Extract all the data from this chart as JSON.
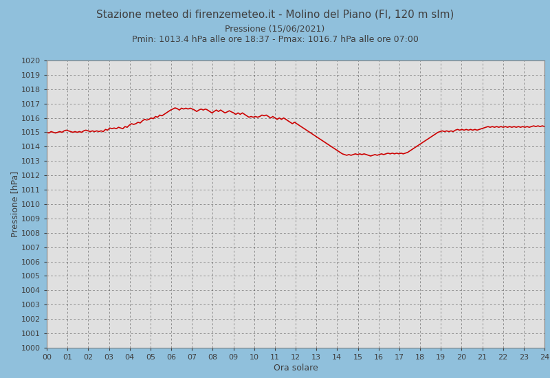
{
  "title": "Stazione meteo di firenzemeteo.it - Molino del Piano (FI, 120 m slm)",
  "subtitle1": "Pressione (15/06/2021)",
  "subtitle2": "Pmin: 1013.4 hPa alle ore 18:37 - Pmax: 1016.7 hPa alle ore 07:00",
  "ylabel": "Pressione [hPa]",
  "xlabel": "Ora solare",
  "ylim": [
    1000,
    1020
  ],
  "xlim": [
    0,
    24
  ],
  "xticks": [
    0,
    1,
    2,
    3,
    4,
    5,
    6,
    7,
    8,
    9,
    10,
    11,
    12,
    13,
    14,
    15,
    16,
    17,
    18,
    19,
    20,
    21,
    22,
    23,
    24
  ],
  "xtick_labels": [
    "00",
    "01",
    "02",
    "03",
    "04",
    "05",
    "06",
    "07",
    "08",
    "09",
    "10",
    "11",
    "12",
    "13",
    "14",
    "15",
    "16",
    "17",
    "18",
    "19",
    "20",
    "21",
    "22",
    "23",
    "24"
  ],
  "yticks": [
    1000,
    1001,
    1002,
    1003,
    1004,
    1005,
    1006,
    1007,
    1008,
    1009,
    1010,
    1011,
    1012,
    1013,
    1014,
    1015,
    1016,
    1017,
    1018,
    1019,
    1020
  ],
  "bg_color_outer": "#90c0dc",
  "bg_color_inner": "#e0e0e0",
  "title_color": "#404040",
  "tick_color": "#404040",
  "grid_color": "#000000",
  "line_color": "#cc0000",
  "line_width": 1.2,
  "pressure_data": [
    1015.0,
    1014.95,
    1015.05,
    1015.0,
    1014.95,
    1015.0,
    1015.05,
    1015.0,
    1015.1,
    1015.15,
    1015.1,
    1015.05,
    1015.0,
    1015.05,
    1015.0,
    1015.05,
    1015.0,
    1015.1,
    1015.15,
    1015.1,
    1015.05,
    1015.1,
    1015.05,
    1015.1,
    1015.05,
    1015.1,
    1015.05,
    1015.2,
    1015.15,
    1015.3,
    1015.25,
    1015.3,
    1015.25,
    1015.35,
    1015.3,
    1015.25,
    1015.4,
    1015.35,
    1015.5,
    1015.6,
    1015.55,
    1015.6,
    1015.7,
    1015.65,
    1015.8,
    1015.9,
    1015.85,
    1015.9,
    1016.0,
    1015.95,
    1016.1,
    1016.05,
    1016.2,
    1016.15,
    1016.25,
    1016.35,
    1016.45,
    1016.55,
    1016.62,
    1016.7,
    1016.65,
    1016.55,
    1016.68,
    1016.62,
    1016.68,
    1016.62,
    1016.68,
    1016.62,
    1016.55,
    1016.45,
    1016.55,
    1016.62,
    1016.55,
    1016.62,
    1016.55,
    1016.45,
    1016.35,
    1016.45,
    1016.55,
    1016.45,
    1016.55,
    1016.45,
    1016.35,
    1016.42,
    1016.5,
    1016.42,
    1016.35,
    1016.25,
    1016.35,
    1016.25,
    1016.35,
    1016.25,
    1016.15,
    1016.05,
    1016.1,
    1016.05,
    1016.1,
    1016.05,
    1016.1,
    1016.2,
    1016.15,
    1016.2,
    1016.1,
    1016.0,
    1016.1,
    1016.0,
    1015.9,
    1016.0,
    1015.9,
    1016.0,
    1015.9,
    1015.8,
    1015.7,
    1015.6,
    1015.7,
    1015.6,
    1015.5,
    1015.4,
    1015.3,
    1015.2,
    1015.1,
    1015.0,
    1014.9,
    1014.8,
    1014.7,
    1014.6,
    1014.5,
    1014.4,
    1014.3,
    1014.2,
    1014.1,
    1014.0,
    1013.9,
    1013.8,
    1013.7,
    1013.6,
    1013.5,
    1013.45,
    1013.4,
    1013.45,
    1013.4,
    1013.45,
    1013.5,
    1013.45,
    1013.5,
    1013.45,
    1013.5,
    1013.45,
    1013.4,
    1013.35,
    1013.4,
    1013.45,
    1013.4,
    1013.45,
    1013.5,
    1013.45,
    1013.5,
    1013.55,
    1013.5,
    1013.55,
    1013.5,
    1013.55,
    1013.5,
    1013.55,
    1013.5,
    1013.55,
    1013.6,
    1013.7,
    1013.8,
    1013.9,
    1014.0,
    1014.1,
    1014.2,
    1014.3,
    1014.4,
    1014.5,
    1014.6,
    1014.7,
    1014.8,
    1014.9,
    1015.0,
    1015.05,
    1015.1,
    1015.05,
    1015.1,
    1015.05,
    1015.1,
    1015.05,
    1015.15,
    1015.2,
    1015.15,
    1015.2,
    1015.15,
    1015.2,
    1015.15,
    1015.2,
    1015.15,
    1015.2,
    1015.15,
    1015.2,
    1015.25,
    1015.3,
    1015.35,
    1015.4,
    1015.35,
    1015.4,
    1015.35,
    1015.4,
    1015.35,
    1015.4,
    1015.35,
    1015.4,
    1015.35,
    1015.4,
    1015.35,
    1015.4,
    1015.35,
    1015.4,
    1015.35,
    1015.4,
    1015.35,
    1015.4,
    1015.35,
    1015.4,
    1015.45,
    1015.4,
    1015.45,
    1015.4,
    1015.45,
    1015.4
  ]
}
